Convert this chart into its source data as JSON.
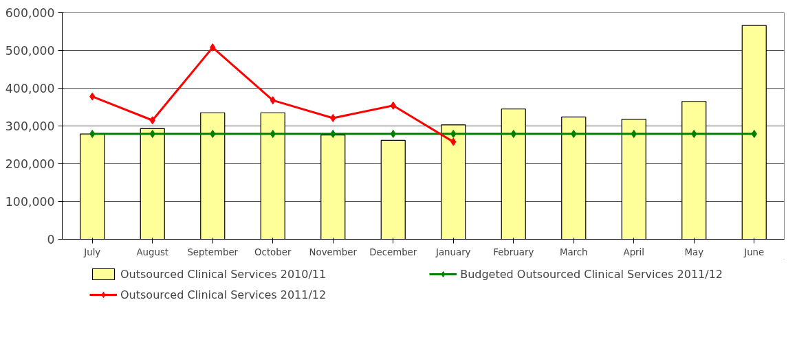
{
  "chart_data": {
    "type": "bar",
    "categories": [
      "July",
      "August",
      "September",
      "October",
      "November",
      "December",
      "January",
      "February",
      "March",
      "April",
      "May",
      "June"
    ],
    "series": [
      {
        "name": "Outsourced Clinical Services 2010/11",
        "color": "#ffff99",
        "values": [
          279000,
          293000,
          335000,
          335000,
          276000,
          262000,
          303000,
          345000,
          324000,
          318000,
          365000,
          566000
        ]
      },
      {
        "name": "Budgeted Outsourced Clinical Services 2011/12",
        "type": "line",
        "color": "#008000",
        "marker": "diamond",
        "values": [
          279000,
          279000,
          279000,
          279000,
          279000,
          279000,
          279000,
          279000,
          279000,
          279000,
          279000,
          279000
        ]
      },
      {
        "name": "Outsourced Clinical Services 2011/12",
        "type": "line",
        "color": "#ff0000",
        "marker": "diamond",
        "values": [
          378000,
          315000,
          508000,
          368000,
          321000,
          354000,
          258000,
          null,
          null,
          null,
          null,
          null
        ]
      }
    ],
    "ylim": [
      0,
      600000
    ],
    "yticks": [
      {
        "value": 0,
        "label": "0"
      },
      {
        "value": 100000,
        "label": "100,000"
      },
      {
        "value": 200000,
        "label": "200,000"
      },
      {
        "value": 300000,
        "label": "300,000"
      },
      {
        "value": 400000,
        "label": "400,000"
      },
      {
        "value": 500000,
        "label": "500,000"
      },
      {
        "value": 600000,
        "label": "600,000"
      }
    ],
    "grid": "y",
    "legend": "bottom"
  }
}
